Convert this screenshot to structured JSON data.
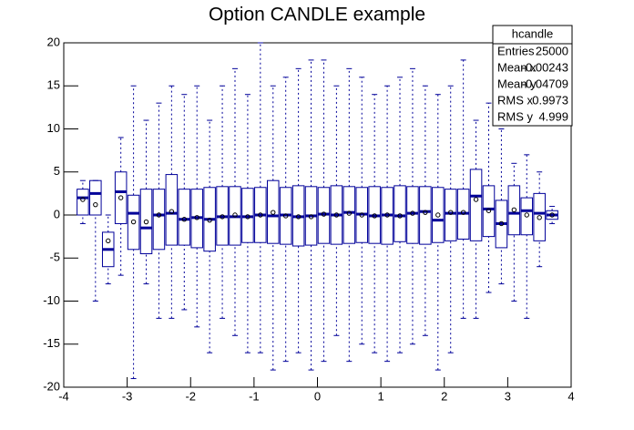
{
  "chart_data": {
    "type": "candle",
    "title": "Option CANDLE example",
    "x": [
      -3.7,
      -3.5,
      -3.3,
      -3.1,
      -2.9,
      -2.7,
      -2.5,
      -2.3,
      -2.1,
      -1.9,
      -1.7,
      -1.5,
      -1.3,
      -1.1,
      -0.9,
      -0.7,
      -0.5,
      -0.3,
      -0.1,
      0.1,
      0.3,
      0.5,
      0.7,
      0.9,
      1.1,
      1.3,
      1.5,
      1.7,
      1.9,
      2.1,
      2.3,
      2.5,
      2.7,
      2.9,
      3.1,
      3.3,
      3.5,
      3.7
    ],
    "series": [
      {
        "name": "hcandle",
        "color": "#000099",
        "min": [
          -1,
          -10,
          -8,
          -7,
          -19,
          -8,
          -12,
          -12,
          -11,
          -13,
          -16,
          -12,
          -14,
          -16,
          -16,
          -18,
          -17,
          -16,
          -18,
          -17,
          -14,
          -17,
          -15,
          -16,
          -17,
          -16,
          -15,
          -14,
          -18,
          -16,
          -12,
          -12,
          -9,
          -8,
          -10,
          -12,
          -6,
          -1
        ],
        "q1": [
          0,
          0,
          -6,
          -1,
          -4,
          -4.5,
          -4,
          -3.5,
          -3.5,
          -3.8,
          -4.2,
          -3.5,
          -3.5,
          -3.2,
          -3.2,
          -3.3,
          -3.4,
          -3.6,
          -3.5,
          -3.3,
          -3.4,
          -3.3,
          -3.2,
          -3.3,
          -3.4,
          -3.1,
          -3.3,
          -3.4,
          -3.2,
          -3,
          -2.8,
          -3,
          -2.5,
          -3.8,
          -2.3,
          -2.3,
          -3,
          -0.5
        ],
        "median": [
          2,
          2.5,
          -4,
          2.7,
          0.2,
          -1.5,
          0,
          0.2,
          -0.5,
          -0.3,
          -0.5,
          -0.2,
          -0.2,
          -0.2,
          0,
          -0.1,
          0,
          -0.2,
          -0.1,
          0.1,
          0,
          0.3,
          0.1,
          -0.1,
          0,
          -0.1,
          0.2,
          0.4,
          -0.6,
          0.2,
          0.2,
          2.2,
          0.7,
          -1,
          0.2,
          0.5,
          0.2,
          0
        ],
        "q3": [
          3,
          4,
          -2,
          5,
          2.3,
          3,
          3,
          4.7,
          3,
          3,
          3.2,
          3.3,
          3.3,
          3.1,
          3.2,
          4,
          3.2,
          3.4,
          3.3,
          3.2,
          3.4,
          3.3,
          3.2,
          3.3,
          3.2,
          3.4,
          3.3,
          3.3,
          3.2,
          3,
          3,
          5.3,
          3.4,
          1.7,
          3.4,
          2,
          2.5,
          0.5
        ],
        "max": [
          4,
          4,
          0,
          9,
          15,
          11,
          13,
          15,
          14,
          15,
          11,
          15,
          17,
          14,
          20,
          15,
          16,
          17,
          18,
          18,
          15,
          17,
          16,
          14,
          15,
          16,
          17,
          15,
          14,
          15,
          18,
          11,
          13,
          10,
          6,
          7,
          5,
          1
        ],
        "mean": [
          1.8,
          1.2,
          -3,
          2,
          -0.8,
          -0.8,
          0,
          0.4,
          -0.5,
          -0.3,
          -0.6,
          -0.2,
          0,
          -0.2,
          0,
          0.3,
          -0.1,
          -0.2,
          -0.2,
          0.1,
          0,
          0.2,
          0,
          -0.1,
          0,
          -0.1,
          0.2,
          0.3,
          0,
          0.3,
          0.3,
          1.8,
          0.5,
          -1,
          0.6,
          0,
          -0.3,
          0
        ]
      }
    ],
    "xlim": [
      -4,
      4
    ],
    "ylim": [
      -20,
      20
    ],
    "xticks": [
      -4,
      -3,
      -2,
      -1,
      0,
      1,
      2,
      3,
      4
    ],
    "yticks": [
      -20,
      -15,
      -10,
      -5,
      0,
      5,
      10,
      15,
      20
    ],
    "stats": {
      "title": "hcandle",
      "rows": [
        [
          "Entries",
          "25000"
        ],
        [
          "Mean x",
          "-0.00243"
        ],
        [
          "Mean y",
          "-0.04709"
        ],
        [
          "RMS x",
          "0.9973"
        ],
        [
          "RMS y",
          "4.999"
        ]
      ]
    }
  }
}
